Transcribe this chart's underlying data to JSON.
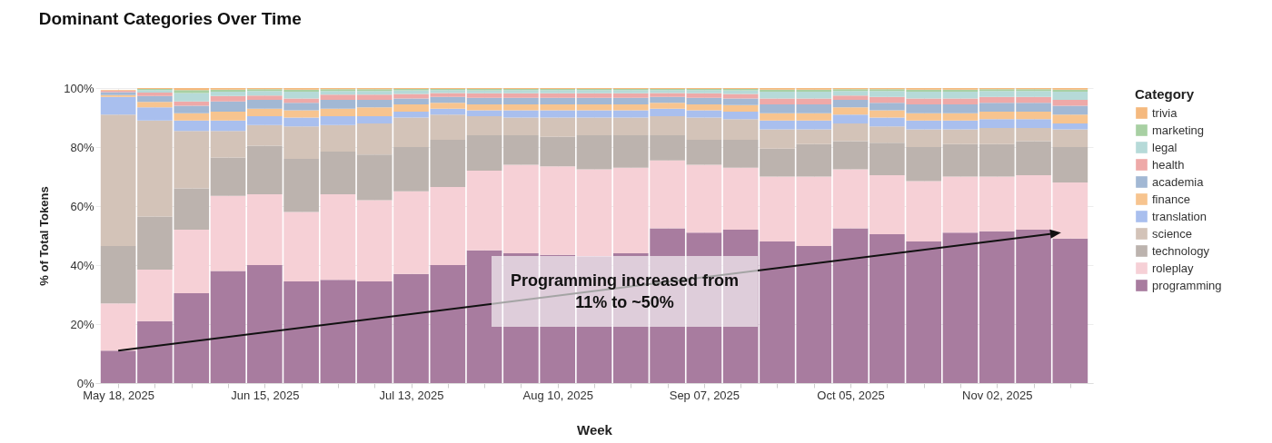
{
  "chart_data": {
    "type": "bar",
    "title": "Dominant Categories Over Time",
    "xlabel": "Week",
    "ylabel": "% of Total Tokens",
    "legend_title": "Category",
    "x": [
      "2025-05-18",
      "2025-05-25",
      "2025-06-01",
      "2025-06-08",
      "2025-06-15",
      "2025-06-22",
      "2025-06-29",
      "2025-07-06",
      "2025-07-13",
      "2025-07-20",
      "2025-07-27",
      "2025-08-03",
      "2025-08-10",
      "2025-08-17",
      "2025-08-24",
      "2025-08-31",
      "2025-09-07",
      "2025-09-14",
      "2025-09-21",
      "2025-09-28",
      "2025-10-05",
      "2025-10-12",
      "2025-10-19",
      "2025-10-26",
      "2025-11-02",
      "2025-11-09",
      "2025-11-16"
    ],
    "xlim": [
      "2025-05-14T12:00",
      "2025-11-19T12:00"
    ],
    "xticks": [
      {
        "value": "2025-05-18",
        "label": "May 18, 2025"
      },
      {
        "value": "2025-05-25",
        "label": null
      },
      {
        "value": "2025-06-01",
        "label": null
      },
      {
        "value": "2025-06-08",
        "label": null
      },
      {
        "value": "2025-06-15",
        "label": "Jun 15, 2025"
      },
      {
        "value": "2025-06-22",
        "label": null
      },
      {
        "value": "2025-06-29",
        "label": null
      },
      {
        "value": "2025-07-06",
        "label": null
      },
      {
        "value": "2025-07-13",
        "label": "Jul 13, 2025"
      },
      {
        "value": "2025-07-20",
        "label": null
      },
      {
        "value": "2025-07-27",
        "label": null
      },
      {
        "value": "2025-08-03",
        "label": null
      },
      {
        "value": "2025-08-10",
        "label": "Aug 10, 2025"
      },
      {
        "value": "2025-08-17",
        "label": null
      },
      {
        "value": "2025-08-24",
        "label": null
      },
      {
        "value": "2025-08-31",
        "label": null
      },
      {
        "value": "2025-09-07",
        "label": "Sep 07, 2025"
      },
      {
        "value": "2025-09-14",
        "label": null
      },
      {
        "value": "2025-09-21",
        "label": null
      },
      {
        "value": "2025-09-28",
        "label": null
      },
      {
        "value": "2025-10-05",
        "label": "Oct 05, 2025"
      },
      {
        "value": "2025-10-12",
        "label": null
      },
      {
        "value": "2025-10-19",
        "label": null
      },
      {
        "value": "2025-10-26",
        "label": null
      },
      {
        "value": "2025-11-02",
        "label": "Nov 02, 2025"
      },
      {
        "value": "2025-11-09",
        "label": null
      },
      {
        "value": "2025-11-16",
        "label": null
      }
    ],
    "ylim": [
      0,
      100
    ],
    "yticks": [
      {
        "value": 0,
        "label": "0%"
      },
      {
        "value": 20,
        "label": "20%"
      },
      {
        "value": 40,
        "label": "40%"
      },
      {
        "value": 60,
        "label": "60%"
      },
      {
        "value": 80,
        "label": "80%"
      },
      {
        "value": 100,
        "label": "100%"
      }
    ],
    "stacked": true,
    "grid": true,
    "legend": "right",
    "annotations": [
      "Programming increased from 11% to ~50%"
    ],
    "series": [
      {
        "name": "programming",
        "color": "#a87c9f",
        "values": [
          11,
          21,
          30.5,
          38,
          40,
          34.5,
          35,
          34.5,
          37,
          40,
          45,
          44,
          43.5,
          43,
          44,
          52.5,
          51,
          52,
          48,
          46.5,
          52.5,
          50.5,
          48,
          51,
          51.5,
          52,
          49
        ]
      },
      {
        "name": "roleplay",
        "color": "#f6d0d6",
        "values": [
          16,
          17.5,
          21.5,
          25.5,
          24,
          23.5,
          29,
          27.5,
          28,
          26.5,
          27,
          30,
          30,
          29.5,
          29,
          23,
          23,
          21,
          22,
          23.5,
          20,
          20,
          20.5,
          19,
          18.5,
          18.5,
          19
        ]
      },
      {
        "name": "technology",
        "color": "#bcb3ae",
        "values": [
          19.5,
          18,
          14,
          13,
          16.5,
          18,
          14.5,
          15.5,
          15,
          16,
          12,
          10,
          10,
          11.5,
          11,
          8.5,
          8.5,
          9.5,
          9.5,
          11,
          9.5,
          11,
          11.5,
          11,
          11,
          11.5,
          12
        ]
      },
      {
        "name": "science",
        "color": "#d3c3b8",
        "values": [
          44.5,
          32.5,
          19.5,
          9,
          7,
          11,
          9,
          10.5,
          10,
          8.5,
          6.5,
          6,
          6.5,
          6,
          6,
          6.5,
          7.5,
          7,
          6.5,
          5,
          6,
          5.5,
          6,
          5,
          5.5,
          4.5,
          6
        ]
      },
      {
        "name": "translation",
        "color": "#a9bfee",
        "values": [
          6,
          4.5,
          3.5,
          3.5,
          3,
          3,
          3,
          2.5,
          2,
          2,
          2,
          2.5,
          2.5,
          2.5,
          2.5,
          2.5,
          2.5,
          2.5,
          3,
          3,
          3,
          3,
          3,
          3,
          3,
          3,
          2
        ]
      },
      {
        "name": "finance",
        "color": "#f7c48f",
        "values": [
          0.6,
          1.8,
          2.5,
          3,
          2.5,
          2.5,
          2.5,
          3,
          2.5,
          2,
          2,
          2,
          2,
          2,
          2,
          2,
          2,
          2.2,
          2.5,
          2.5,
          2.5,
          2.5,
          2.5,
          2.5,
          2.5,
          2.5,
          3
        ]
      },
      {
        "name": "academia",
        "color": "#a2b8d4",
        "values": [
          1,
          2,
          2.5,
          3.5,
          3,
          2.5,
          3,
          2.5,
          2,
          2,
          2.2,
          2.2,
          2.2,
          2.2,
          2.2,
          2,
          2.2,
          2.3,
          3,
          3,
          2.5,
          2.5,
          3,
          3,
          3,
          3,
          3
        ]
      },
      {
        "name": "health",
        "color": "#eea9a8",
        "values": [
          0.5,
          1.2,
          1.5,
          1.8,
          1.5,
          1.5,
          1.8,
          1.8,
          1.5,
          1.3,
          1.5,
          1.5,
          1.5,
          1.5,
          1.5,
          1.3,
          1.5,
          1.5,
          2,
          2,
          1.5,
          2,
          2,
          2,
          2,
          2,
          2
        ]
      },
      {
        "name": "legal",
        "color": "#b6dad8",
        "values": [
          null,
          0.8,
          2.8,
          1.5,
          1.5,
          2.3,
          1.2,
          1.2,
          1.2,
          1,
          1,
          1.1,
          1.1,
          1.1,
          1.1,
          1,
          1.1,
          1.2,
          2.3,
          2.3,
          1.5,
          2,
          2.3,
          2.3,
          2,
          2,
          2.8
        ]
      },
      {
        "name": "marketing",
        "color": "#a8d0a3",
        "values": [
          null,
          0.4,
          1,
          0.7,
          0.6,
          0.7,
          0.6,
          0.6,
          0.5,
          0.4,
          0.5,
          0.4,
          0.4,
          0.4,
          0.4,
          0.4,
          0.4,
          0.5,
          0.7,
          0.7,
          0.6,
          0.6,
          0.7,
          0.7,
          0.6,
          0.6,
          0.7
        ]
      },
      {
        "name": "trivia",
        "color": "#f5b97e",
        "values": [
          0.2,
          0.3,
          0.7,
          0.5,
          0.4,
          0.5,
          0.4,
          0.4,
          0.3,
          0.3,
          0.3,
          0.3,
          0.3,
          0.3,
          0.3,
          0.3,
          0.3,
          0.3,
          0.5,
          0.5,
          0.4,
          0.4,
          0.5,
          0.5,
          0.4,
          0.4,
          0.5
        ]
      }
    ]
  }
}
